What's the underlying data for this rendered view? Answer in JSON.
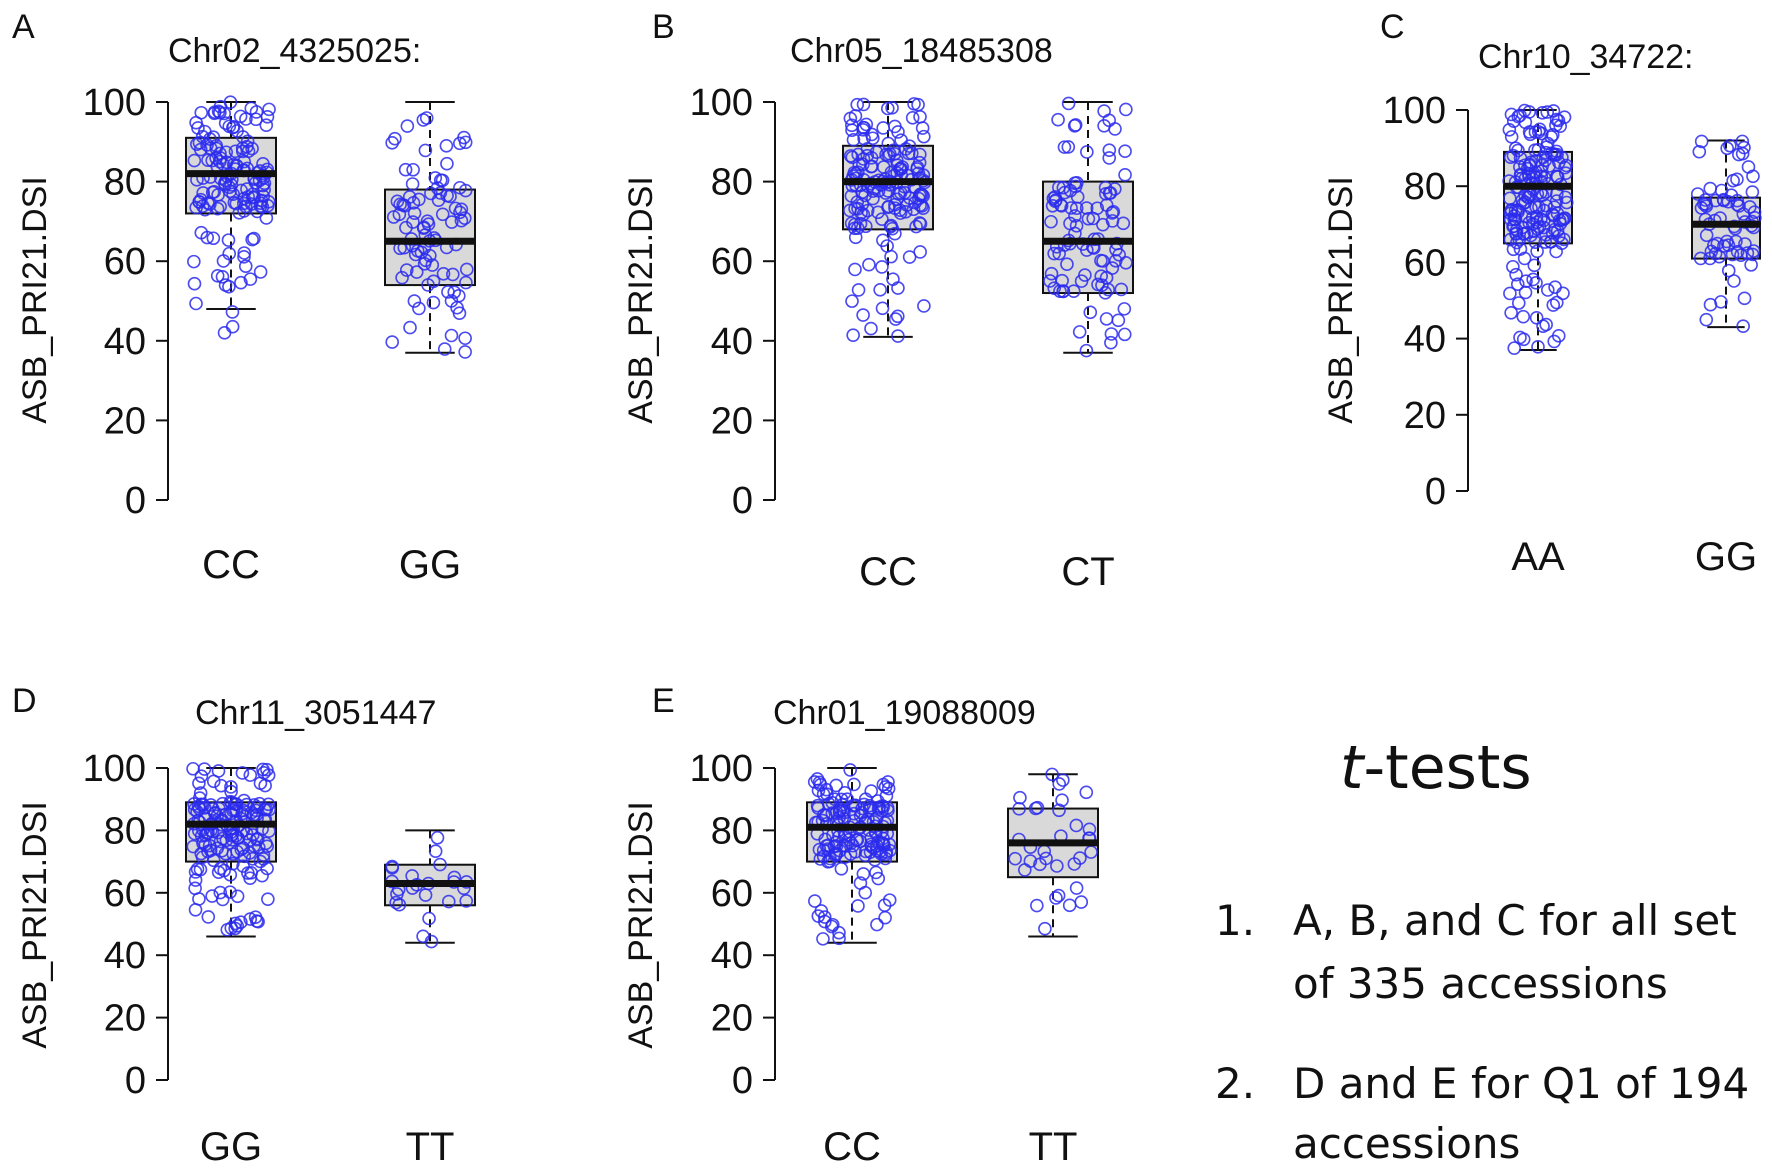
{
  "chart_data": [
    {
      "type": "box",
      "panel": "A",
      "title": "Chr02_4325025:",
      "ylabel": "ASB_PRI21.DSI",
      "ylim": [
        0,
        100
      ],
      "yticks": [
        0,
        20,
        40,
        60,
        80,
        100
      ],
      "categories": [
        "CC",
        "GG"
      ],
      "boxes": [
        {
          "category": "CC",
          "whisker_low": 48,
          "q1": 72,
          "median": 82,
          "q3": 91,
          "whisker_high": 100,
          "points_min": 41,
          "points_max": 100,
          "n_points": 150
        },
        {
          "category": "GG",
          "whisker_low": 37,
          "q1": 54,
          "median": 65,
          "q3": 78,
          "whisker_high": 100,
          "points_min": 37,
          "points_max": 100,
          "n_points": 90
        }
      ]
    },
    {
      "type": "box",
      "panel": "B",
      "title": "Chr05_18485308",
      "ylabel": "ASB_PRI21.DSI",
      "ylim": [
        0,
        100
      ],
      "yticks": [
        0,
        20,
        40,
        60,
        80,
        100
      ],
      "categories": [
        "CC",
        "CT"
      ],
      "boxes": [
        {
          "category": "CC",
          "whisker_low": 41,
          "q1": 68,
          "median": 80,
          "q3": 89,
          "whisker_high": 100,
          "points_min": 41,
          "points_max": 100,
          "n_points": 170
        },
        {
          "category": "CT",
          "whisker_low": 37,
          "q1": 52,
          "median": 65,
          "q3": 80,
          "whisker_high": 100,
          "points_min": 37,
          "points_max": 100,
          "n_points": 100
        }
      ]
    },
    {
      "type": "box",
      "panel": "C",
      "title": "Chr10_34722:",
      "ylabel": "ASB_PRI21.DSI",
      "ylim": [
        0,
        100
      ],
      "yticks": [
        0,
        20,
        40,
        60,
        80,
        100
      ],
      "categories": [
        "AA",
        "GG"
      ],
      "boxes": [
        {
          "category": "AA",
          "whisker_low": 37,
          "q1": 65,
          "median": 80,
          "q3": 89,
          "whisker_high": 100,
          "points_min": 37,
          "points_max": 100,
          "n_points": 190
        },
        {
          "category": "GG",
          "whisker_low": 43,
          "q1": 61,
          "median": 70,
          "q3": 77,
          "whisker_high": 92,
          "points_min": 43,
          "points_max": 92,
          "n_points": 70
        }
      ]
    },
    {
      "type": "box",
      "panel": "D",
      "title": "Chr11_3051447",
      "ylabel": "ASB_PRI21.DSI",
      "ylim": [
        0,
        100
      ],
      "yticks": [
        0,
        20,
        40,
        60,
        80,
        100
      ],
      "categories": [
        "GG",
        "TT"
      ],
      "boxes": [
        {
          "category": "GG",
          "whisker_low": 46,
          "q1": 70,
          "median": 82,
          "q3": 89,
          "whisker_high": 100,
          "points_min": 46,
          "points_max": 100,
          "n_points": 170
        },
        {
          "category": "TT",
          "whisker_low": 44,
          "q1": 56,
          "median": 63,
          "q3": 69,
          "whisker_high": 80,
          "points_min": 44,
          "points_max": 80,
          "n_points": 24
        }
      ]
    },
    {
      "type": "box",
      "panel": "E",
      "title": "Chr01_19088009",
      "ylabel": "ASB_PRI21.DSI",
      "ylim": [
        0,
        100
      ],
      "yticks": [
        0,
        20,
        40,
        60,
        80,
        100
      ],
      "categories": [
        "CC",
        "TT"
      ],
      "boxes": [
        {
          "category": "CC",
          "whisker_low": 44,
          "q1": 70,
          "median": 81,
          "q3": 89,
          "whisker_high": 100,
          "points_min": 44,
          "points_max": 100,
          "n_points": 160
        },
        {
          "category": "TT",
          "whisker_low": 46,
          "q1": 65,
          "median": 76,
          "q3": 87,
          "whisker_high": 98,
          "points_min": 46,
          "points_max": 98,
          "n_points": 34
        }
      ]
    }
  ],
  "notes": {
    "title_italic": "t",
    "title_rest": "-tests",
    "items": [
      {
        "num": "1.",
        "line1": "A, B, and C for all set",
        "line2": "of 335 accessions"
      },
      {
        "num": "2.",
        "line1": "D and E for Q1 of 194",
        "line2": "accessions"
      }
    ]
  },
  "colors": {
    "point": "#2b2bef",
    "box_fill": "#d9d9d9",
    "axis": "#111111"
  }
}
